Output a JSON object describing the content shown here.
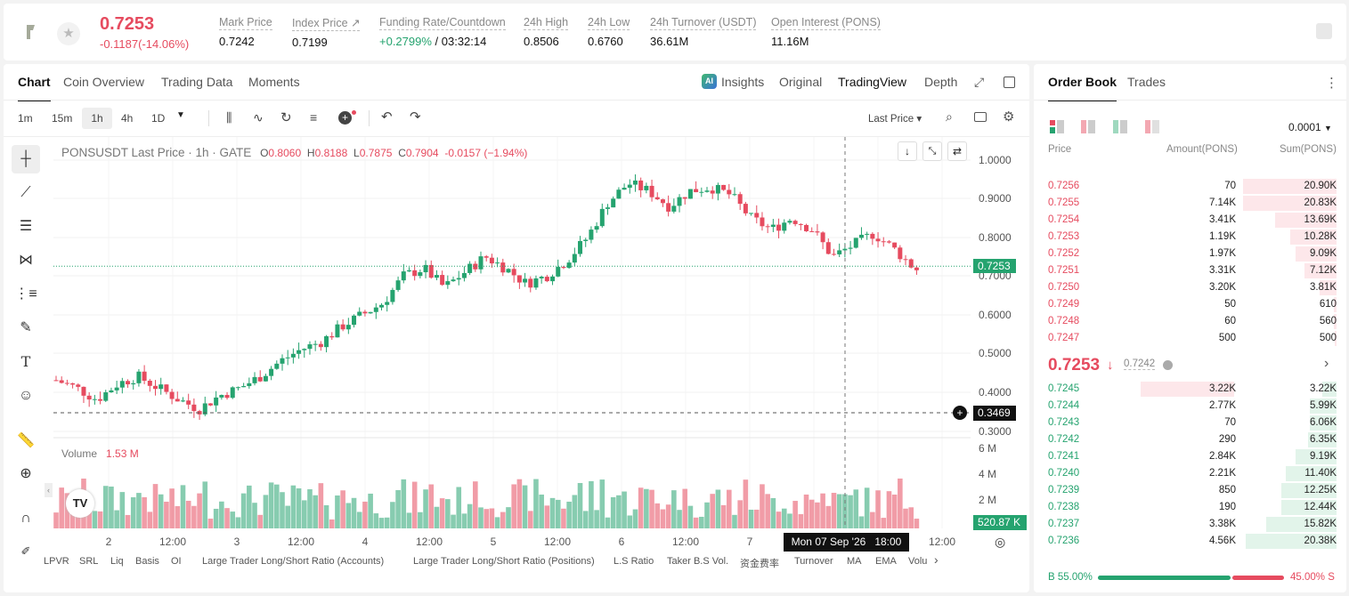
{
  "ticker": {
    "price": "0.7253",
    "change": "-0.1187(-14.06%)",
    "stats": [
      {
        "label": "Mark Price",
        "value": "0.7242"
      },
      {
        "label": "Index Price ↗",
        "value": "0.7199"
      },
      {
        "label": "Funding Rate/Countdown",
        "value_green": "+0.2799%",
        "value_rest": " / 03:32:14"
      },
      {
        "label": "24h High",
        "value": "0.8506"
      },
      {
        "label": "24h Low",
        "value": "0.6760"
      },
      {
        "label": "24h Turnover (USDT)",
        "value": "36.61M"
      },
      {
        "label": "Open Interest (PONS)",
        "value": "11.16M"
      }
    ]
  },
  "chart_tabs": [
    "Chart",
    "Coin Overview",
    "Trading Data",
    "Moments"
  ],
  "view_tabs": {
    "insights": "Insights",
    "original": "Original",
    "tradingview": "TradingView",
    "depth": "Depth"
  },
  "intervals": [
    "1m",
    "15m",
    "1h",
    "4h",
    "1D"
  ],
  "price_source": "Last Price",
  "legend": {
    "symbol": "PONSUSDT Last Price · 1h · GATE",
    "o_label": "O",
    "o": "0.8060",
    "h_label": "H",
    "h": "0.8188",
    "l_label": "L",
    "l": "0.7875",
    "c_label": "C",
    "c": "0.7904",
    "chg": "-0.0157 (−1.94%)"
  },
  "volume_label": "Volume",
  "volume_value": "1.53 M",
  "price_axis": [
    "1.0000",
    "0.9000",
    "0.8000",
    "0.7000",
    "0.6000",
    "0.5000",
    "0.4000",
    "0.3000"
  ],
  "last_price_tag": "0.7253",
  "crosshair_price": "0.3469",
  "volume_axis": [
    "6 M",
    "4 M",
    "2 M"
  ],
  "volume_tag": "520.87 K",
  "time_axis": [
    "2",
    "12:00",
    "3",
    "12:00",
    "4",
    "12:00",
    "5",
    "12:00",
    "6",
    "12:00",
    "7",
    "12:00"
  ],
  "crosshair_time": "Mon 07 Sep '26   18:00",
  "indicators": [
    "LPVR",
    "SRL",
    "Liq",
    "Basis",
    "OI",
    "Large Trader Long/Short Ratio (Accounts)",
    "Large Trader Long/Short Ratio (Positions)",
    "L.S Ratio",
    "Taker B.S Vol.",
    "资金费率",
    "Turnover",
    "MA",
    "EMA",
    "Volu"
  ],
  "orderbook": {
    "tabs": [
      "Order Book",
      "Trades"
    ],
    "precision": "0.0001",
    "headers": [
      "Price",
      "Amount(PONS)",
      "Sum(PONS)"
    ],
    "asks": [
      [
        "0.7256",
        "70",
        "20.90K"
      ],
      [
        "0.7255",
        "7.14K",
        "20.83K"
      ],
      [
        "0.7254",
        "3.41K",
        "13.69K"
      ],
      [
        "0.7253",
        "1.19K",
        "10.28K"
      ],
      [
        "0.7252",
        "1.97K",
        "9.09K"
      ],
      [
        "0.7251",
        "3.31K",
        "7.12K"
      ],
      [
        "0.7250",
        "3.20K",
        "3.81K"
      ],
      [
        "0.7249",
        "50",
        "610"
      ],
      [
        "0.7248",
        "60",
        "560"
      ],
      [
        "0.7247",
        "500",
        "500"
      ]
    ],
    "mid_price": "0.7253",
    "mid_arrow": "↓",
    "mark": "0.7242",
    "bids": [
      [
        "0.7245",
        "3.22K",
        "3.22K"
      ],
      [
        "0.7244",
        "2.77K",
        "5.99K"
      ],
      [
        "0.7243",
        "70",
        "6.06K"
      ],
      [
        "0.7242",
        "290",
        "6.35K"
      ],
      [
        "0.7241",
        "2.84K",
        "9.19K"
      ],
      [
        "0.7240",
        "2.21K",
        "11.40K"
      ],
      [
        "0.7239",
        "850",
        "12.25K"
      ],
      [
        "0.7238",
        "190",
        "12.44K"
      ],
      [
        "0.7237",
        "3.38K",
        "15.82K"
      ],
      [
        "0.7236",
        "4.56K",
        "20.38K"
      ]
    ],
    "buy_label": "B",
    "buy_pct": "55.00%",
    "sell_pct": "45.00%",
    "sell_label": "S"
  },
  "colors": {
    "up": "#25a36f",
    "down": "#e64b5f"
  }
}
